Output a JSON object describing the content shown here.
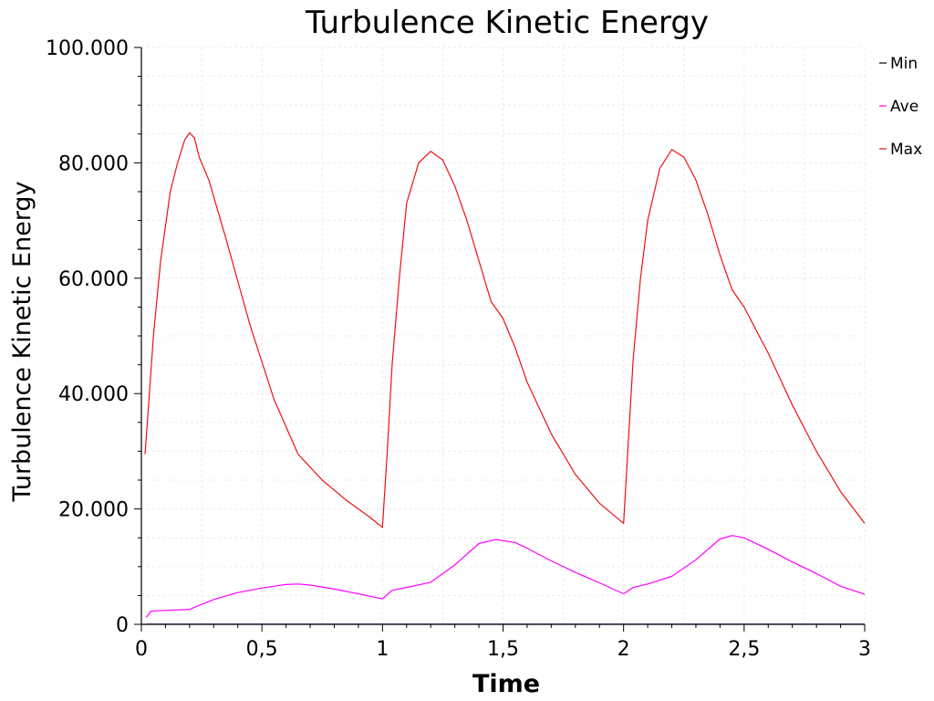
{
  "chart_data": {
    "type": "line",
    "title": "Turbulence Kinetic Energy",
    "xlabel": "Time",
    "ylabel": "Turbulence Kinetic Energy",
    "xlim": [
      0,
      3
    ],
    "ylim": [
      0,
      100
    ],
    "x_ticks": [
      0,
      0.5,
      1,
      1.5,
      2,
      2.5,
      3
    ],
    "x_tick_labels": [
      "0",
      "0,5",
      "1",
      "1,5",
      "2",
      "2,5",
      "3"
    ],
    "y_ticks": [
      0,
      20,
      40,
      60,
      80,
      100
    ],
    "y_tick_labels": [
      "0",
      "20.000",
      "40.000",
      "60.000",
      "80.000",
      "100.000"
    ],
    "grid": true,
    "legend_position": "top-right",
    "series": [
      {
        "name": "Min",
        "color": "#6666ff",
        "legend_color": "#000000",
        "points": [
          [
            0.02,
            0.05
          ],
          [
            0.5,
            0.05
          ],
          [
            1.0,
            0.05
          ],
          [
            1.5,
            0.05
          ],
          [
            2.0,
            0.05
          ],
          [
            2.5,
            0.05
          ],
          [
            3.0,
            0.05
          ]
        ]
      },
      {
        "name": "Ave",
        "color": "#ff00ff",
        "points": [
          [
            0.02,
            1.2
          ],
          [
            0.04,
            2.3
          ],
          [
            0.1,
            2.4
          ],
          [
            0.2,
            2.6
          ],
          [
            0.3,
            4.3
          ],
          [
            0.4,
            5.5
          ],
          [
            0.5,
            6.3
          ],
          [
            0.6,
            6.9
          ],
          [
            0.65,
            7.0
          ],
          [
            0.7,
            6.8
          ],
          [
            0.8,
            6.1
          ],
          [
            0.9,
            5.3
          ],
          [
            1.0,
            4.4
          ],
          [
            1.04,
            5.9
          ],
          [
            1.1,
            6.4
          ],
          [
            1.2,
            7.3
          ],
          [
            1.3,
            10.3
          ],
          [
            1.4,
            14.0
          ],
          [
            1.47,
            14.7
          ],
          [
            1.55,
            14.2
          ],
          [
            1.6,
            13.2
          ],
          [
            1.7,
            11.0
          ],
          [
            1.8,
            9.0
          ],
          [
            1.9,
            7.2
          ],
          [
            2.0,
            5.3
          ],
          [
            2.04,
            6.4
          ],
          [
            2.1,
            7.0
          ],
          [
            2.2,
            8.3
          ],
          [
            2.3,
            11.2
          ],
          [
            2.4,
            14.8
          ],
          [
            2.45,
            15.4
          ],
          [
            2.5,
            15.0
          ],
          [
            2.6,
            13.0
          ],
          [
            2.7,
            10.8
          ],
          [
            2.8,
            8.8
          ],
          [
            2.9,
            6.6
          ],
          [
            3.0,
            5.2
          ]
        ]
      },
      {
        "name": "Max",
        "color": "#ee1111",
        "points": [
          [
            0.015,
            29.5
          ],
          [
            0.03,
            38
          ],
          [
            0.05,
            50
          ],
          [
            0.08,
            63
          ],
          [
            0.12,
            75
          ],
          [
            0.15,
            80
          ],
          [
            0.18,
            84
          ],
          [
            0.2,
            85.2
          ],
          [
            0.22,
            84.3
          ],
          [
            0.24,
            81
          ],
          [
            0.28,
            77
          ],
          [
            0.35,
            67
          ],
          [
            0.45,
            52
          ],
          [
            0.55,
            39
          ],
          [
            0.65,
            29.5
          ],
          [
            0.75,
            25
          ],
          [
            0.85,
            21.5
          ],
          [
            0.95,
            18.5
          ],
          [
            1.0,
            16.8
          ],
          [
            1.02,
            30
          ],
          [
            1.04,
            45
          ],
          [
            1.07,
            60
          ],
          [
            1.1,
            73
          ],
          [
            1.15,
            80
          ],
          [
            1.2,
            82
          ],
          [
            1.25,
            80.5
          ],
          [
            1.3,
            76
          ],
          [
            1.35,
            70
          ],
          [
            1.4,
            63
          ],
          [
            1.45,
            56
          ],
          [
            1.5,
            53
          ],
          [
            1.55,
            48
          ],
          [
            1.6,
            42
          ],
          [
            1.7,
            33
          ],
          [
            1.8,
            26
          ],
          [
            1.9,
            21
          ],
          [
            2.0,
            17.5
          ],
          [
            2.02,
            32
          ],
          [
            2.04,
            46
          ],
          [
            2.07,
            60
          ],
          [
            2.1,
            70
          ],
          [
            2.15,
            79
          ],
          [
            2.2,
            82.3
          ],
          [
            2.25,
            81
          ],
          [
            2.3,
            77
          ],
          [
            2.35,
            71
          ],
          [
            2.4,
            64
          ],
          [
            2.45,
            58
          ],
          [
            2.5,
            55
          ],
          [
            2.55,
            51
          ],
          [
            2.6,
            47
          ],
          [
            2.7,
            38
          ],
          [
            2.8,
            30
          ],
          [
            2.9,
            23
          ],
          [
            3.0,
            17.5
          ]
        ]
      }
    ]
  }
}
